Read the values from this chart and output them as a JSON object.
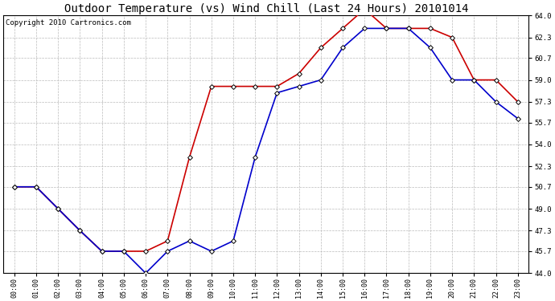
{
  "title": "Outdoor Temperature (vs) Wind Chill (Last 24 Hours) 20101014",
  "copyright": "Copyright 2010 Cartronics.com",
  "hours": [
    "00:00",
    "01:00",
    "02:00",
    "03:00",
    "04:00",
    "05:00",
    "06:00",
    "07:00",
    "08:00",
    "09:00",
    "10:00",
    "11:00",
    "12:00",
    "13:00",
    "14:00",
    "15:00",
    "16:00",
    "17:00",
    "18:00",
    "19:00",
    "20:00",
    "21:00",
    "22:00",
    "23:00"
  ],
  "temp": [
    50.7,
    50.7,
    49.0,
    47.3,
    45.7,
    45.7,
    45.7,
    46.5,
    53.0,
    58.5,
    58.5,
    58.5,
    58.5,
    59.5,
    61.5,
    63.0,
    64.5,
    63.0,
    63.0,
    63.0,
    62.3,
    59.0,
    59.0,
    57.3
  ],
  "wind_chill": [
    50.7,
    50.7,
    49.0,
    47.3,
    45.7,
    45.7,
    44.0,
    45.7,
    46.5,
    45.7,
    46.5,
    53.0,
    58.0,
    58.5,
    59.0,
    61.5,
    63.0,
    63.0,
    63.0,
    61.5,
    59.0,
    59.0,
    57.3,
    56.0
  ],
  "temp_color": "#cc0000",
  "wind_chill_color": "#0000cc",
  "marker": "D",
  "marker_size": 3,
  "ylim": [
    44.0,
    64.0
  ],
  "yticks": [
    44.0,
    45.7,
    47.3,
    49.0,
    50.7,
    52.3,
    54.0,
    55.7,
    57.3,
    59.0,
    60.7,
    62.3,
    64.0
  ],
  "background_color": "#ffffff",
  "plot_bg_color": "#ffffff",
  "grid_color": "#bbbbbb",
  "title_fontsize": 10,
  "copyright_fontsize": 6.5,
  "figwidth": 6.9,
  "figheight": 3.75,
  "dpi": 100
}
